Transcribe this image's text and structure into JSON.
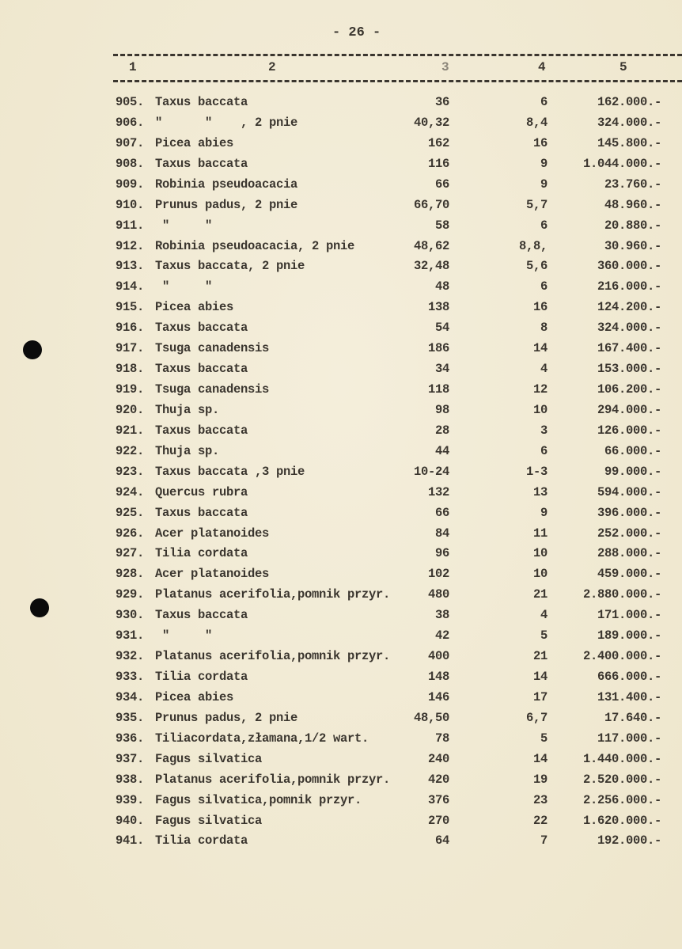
{
  "page_number": "- 26 -",
  "header": [
    "1",
    "2",
    "3",
    "4",
    "5"
  ],
  "rows": [
    {
      "no": "905.",
      "name": "Taxus baccata",
      "c3": "36",
      "c4": "6",
      "c5": "162.000.-"
    },
    {
      "no": "906.",
      "name": "\"      \"    , 2 pnie",
      "c3": "40,32",
      "c4": "8,4",
      "c5": "324.000.-"
    },
    {
      "no": "907.",
      "name": "Picea abies",
      "c3": "162",
      "c4": "16",
      "c5": "145.800.-"
    },
    {
      "no": "908.",
      "name": "Taxus baccata",
      "c3": "116",
      "c4": "9",
      "c5": "1.044.000.-"
    },
    {
      "no": "909.",
      "name": "Robinia pseudoacacia",
      "c3": "66",
      "c4": "9",
      "c5": "23.760.-"
    },
    {
      "no": "910.",
      "name": "Prunus padus, 2 pnie",
      "c3": "66,70",
      "c4": "5,7",
      "c5": "48.960.-"
    },
    {
      "no": "911.",
      "name": " \"     \"",
      "c3": "58",
      "c4": "6",
      "c5": "20.880.-"
    },
    {
      "no": "912.",
      "name": "Robinia pseudoacacia, 2 pnie",
      "c3": "48,62",
      "c4": "8,8,",
      "c5": "30.960.-"
    },
    {
      "no": "913.",
      "name": "Taxus baccata, 2 pnie",
      "c3": "32,48",
      "c4": "5,6",
      "c5": "360.000.-"
    },
    {
      "no": "914.",
      "name": " \"     \"",
      "c3": "48",
      "c4": "6",
      "c5": "216.000.-"
    },
    {
      "no": "915.",
      "name": "Picea abies",
      "c3": "138",
      "c4": "16",
      "c5": "124.200.-"
    },
    {
      "no": "916.",
      "name": "Taxus baccata",
      "c3": "54",
      "c4": "8",
      "c5": "324.000.-"
    },
    {
      "no": "917.",
      "name": "Tsuga canadensis",
      "c3": "186",
      "c4": "14",
      "c5": "167.400.-"
    },
    {
      "no": "918.",
      "name": "Taxus baccata",
      "c3": "34",
      "c4": "4",
      "c5": "153.000.-"
    },
    {
      "no": "919.",
      "name": "Tsuga canadensis",
      "c3": "118",
      "c4": "12",
      "c5": "106.200.-"
    },
    {
      "no": "920.",
      "name": "Thuja sp.",
      "c3": "98",
      "c4": "10",
      "c5": "294.000.-"
    },
    {
      "no": "921.",
      "name": "Taxus baccata",
      "c3": "28",
      "c4": "3",
      "c5": "126.000.-"
    },
    {
      "no": "922.",
      "name": "Thuja sp.",
      "c3": "44",
      "c4": "6",
      "c5": "66.000.-"
    },
    {
      "no": "923.",
      "name": "Taxus baccata ,3 pnie",
      "c3": "10-24",
      "c4": "1-3",
      "c5": "99.000.-"
    },
    {
      "no": "924.",
      "name": "Quercus rubra",
      "c3": "132",
      "c4": "13",
      "c5": "594.000.-"
    },
    {
      "no": "925.",
      "name": "Taxus baccata",
      "c3": "66",
      "c4": "9",
      "c5": "396.000.-"
    },
    {
      "no": "926.",
      "name": "Acer platanoides",
      "c3": "84",
      "c4": "11",
      "c5": "252.000.-"
    },
    {
      "no": "927.",
      "name": "Tilia cordata",
      "c3": "96",
      "c4": "10",
      "c5": "288.000.-"
    },
    {
      "no": "928.",
      "name": "Acer platanoides",
      "c3": "102",
      "c4": "10",
      "c5": "459.000.-"
    },
    {
      "no": "929.",
      "name": "Platanus acerifolia,pomnik przyr.",
      "c3": "480",
      "c4": "21",
      "c5": "2.880.000.-"
    },
    {
      "no": "930.",
      "name": "Taxus baccata",
      "c3": "38",
      "c4": "4",
      "c5": "171.000.-"
    },
    {
      "no": "931.",
      "name": " \"     \"",
      "c3": "42",
      "c4": "5",
      "c5": "189.000.-"
    },
    {
      "no": "932.",
      "name": "Platanus acerifolia,pomnik przyr.",
      "c3": "400",
      "c4": "21",
      "c5": "2.400.000.-"
    },
    {
      "no": "933.",
      "name": "Tilia cordata",
      "c3": "148",
      "c4": "14",
      "c5": "666.000.-"
    },
    {
      "no": "934.",
      "name": "Picea abies",
      "c3": "146",
      "c4": "17",
      "c5": "131.400.-"
    },
    {
      "no": "935.",
      "name": "Prunus padus, 2 pnie",
      "c3": "48,50",
      "c4": "6,7",
      "c5": "17.640.-"
    },
    {
      "no": "936.",
      "name": "Tiliacordata,złamana,1/2 wart.",
      "c3": "78",
      "c4": "5",
      "c5": "117.000.-"
    },
    {
      "no": "937.",
      "name": "Fagus silvatica",
      "c3": "240",
      "c4": "14",
      "c5": "1.440.000.-"
    },
    {
      "no": "938.",
      "name": "Platanus acerifolia,pomnik przyr.",
      "c3": "420",
      "c4": "19",
      "c5": "2.520.000.-"
    },
    {
      "no": "939.",
      "name": "Fagus silvatica,pomnik przyr.",
      "c3": "376",
      "c4": "23",
      "c5": "2.256.000.-"
    },
    {
      "no": "940.",
      "name": "Fagus silvatica",
      "c3": "270",
      "c4": "22",
      "c5": "1.620.000.-"
    },
    {
      "no": "941.",
      "name": "Tilia cordata",
      "c3": "64",
      "c4": "7",
      "c5": "192.000.-"
    }
  ]
}
